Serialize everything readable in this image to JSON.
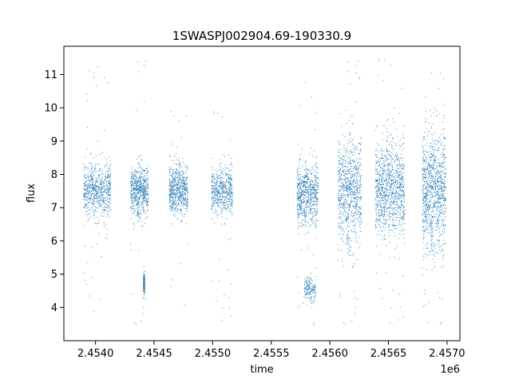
{
  "chart_data": {
    "type": "scatter",
    "title": "1SWASPJ002904.69-190330.9",
    "xlabel": "time",
    "ylabel": "flux",
    "x_offset_label": "1e6",
    "xlim": [
      2453730,
      2457110
    ],
    "ylim": [
      3.0,
      11.85
    ],
    "grid": false,
    "legend": "none",
    "marker_color": "#1f77b4",
    "x_ticks": [
      2454000,
      2454500,
      2455000,
      2455500,
      2456000,
      2456500,
      2457000
    ],
    "x_tick_labels": [
      "2.4540",
      "2.4545",
      "2.4550",
      "2.4555",
      "2.4560",
      "2.4565",
      "2.4570"
    ],
    "y_ticks": [
      4,
      5,
      6,
      7,
      8,
      9,
      10,
      11
    ],
    "y_tick_labels": [
      "4",
      "5",
      "6",
      "7",
      "8",
      "9",
      "10",
      "11"
    ],
    "seasons": [
      {
        "x_start": 2453900,
        "x_end": 2454130,
        "y_center": 7.5,
        "y_spread": 0.9,
        "y_min": 3.5,
        "y_max": 11.45,
        "density": 1.0
      },
      {
        "x_start": 2454300,
        "x_end": 2454450,
        "y_center": 7.5,
        "y_spread": 0.85,
        "y_min": 3.4,
        "y_max": 11.6,
        "density": 0.9
      },
      {
        "x_start": 2454630,
        "x_end": 2454790,
        "y_center": 7.5,
        "y_spread": 0.85,
        "y_min": 3.9,
        "y_max": 10.3,
        "density": 0.9
      },
      {
        "x_start": 2454990,
        "x_end": 2455170,
        "y_center": 7.5,
        "y_spread": 0.8,
        "y_min": 3.5,
        "y_max": 9.9,
        "density": 0.8
      },
      {
        "x_start": 2455720,
        "x_end": 2455900,
        "y_center": 7.4,
        "y_spread": 1.0,
        "y_min": 3.4,
        "y_max": 11.3,
        "density": 1.0
      },
      {
        "x_start": 2456070,
        "x_end": 2456270,
        "y_center": 7.5,
        "y_spread": 1.8,
        "y_min": 3.4,
        "y_max": 11.6,
        "density": 1.2
      },
      {
        "x_start": 2456390,
        "x_end": 2456640,
        "y_center": 7.5,
        "y_spread": 1.6,
        "y_min": 3.4,
        "y_max": 11.5,
        "density": 1.5
      },
      {
        "x_start": 2456790,
        "x_end": 2456990,
        "y_center": 7.5,
        "y_spread": 2.0,
        "y_min": 3.4,
        "y_max": 11.6,
        "density": 1.5
      }
    ],
    "dip_clusters": [
      {
        "x_start": 2455780,
        "x_end": 2455880,
        "y_center": 4.55,
        "y_spread": 0.3
      },
      {
        "x_start": 2454410,
        "x_end": 2454420,
        "y_center": 4.7,
        "y_spread": 0.25
      }
    ]
  }
}
